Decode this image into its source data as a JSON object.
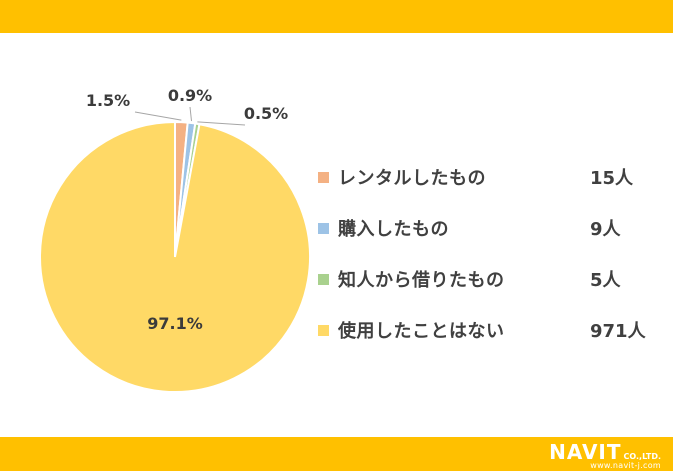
{
  "colors": {
    "band": "#ffc000",
    "background": "#ffffff",
    "series": [
      "#f4b183",
      "#9dc3e6",
      "#a9d18e",
      "#ffd966"
    ]
  },
  "chart_data": {
    "type": "pie",
    "title": "",
    "start_angle_deg": 0,
    "direction": "clockwise",
    "categories": [
      "レンタルしたもの",
      "購入したもの",
      "知人から借りたもの",
      "使用したことはない"
    ],
    "values": [
      1.5,
      0.9,
      0.5,
      97.1
    ],
    "labels": [
      "1.5%",
      "0.9%",
      "0.5%",
      "97.1%"
    ],
    "counts": [
      "15人",
      "9人",
      "5人",
      "971人"
    ],
    "legend_position": "right"
  },
  "logo": {
    "name": "NAVIT",
    "suffix": "CO.,LTD.",
    "url": "www.navit-j.com"
  }
}
